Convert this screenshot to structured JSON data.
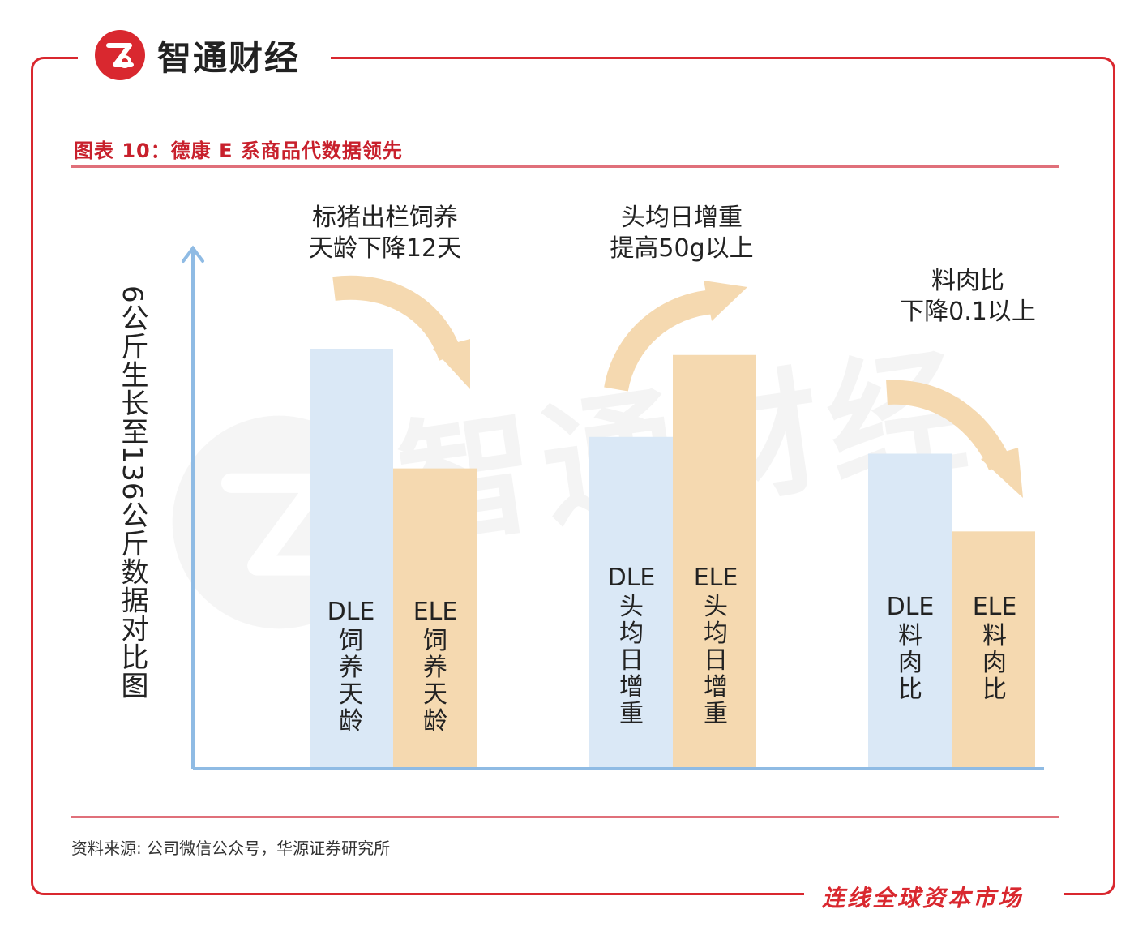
{
  "brand": {
    "name": "智通财经"
  },
  "figure": {
    "title": "图表 10：德康 E 系商品代数据领先",
    "source": "资料来源: 公司微信公众号，华源证券研究所",
    "slogan": "连线全球资本市场",
    "watermark": "智通财经"
  },
  "chart_data": {
    "type": "bar",
    "ylabel": "6公斤生长至136公斤数据对比图",
    "legend": "none",
    "grid": false,
    "categories": [
      "饲养天龄",
      "头均日增重",
      "料肉比"
    ],
    "series": [
      {
        "name": "DLE",
        "color": "#dae8f6",
        "values": [
          100,
          79,
          75
        ]
      },
      {
        "name": "ELE",
        "color": "#f5d9b0",
        "values": [
          71.5,
          98.5,
          56.5
        ]
      }
    ],
    "bar_labels": [
      [
        {
          "code": "DLE",
          "desc": "饲养天龄"
        },
        {
          "code": "ELE",
          "desc": "饲养天龄"
        }
      ],
      [
        {
          "code": "DLE",
          "desc": "头均日增重"
        },
        {
          "code": "ELE",
          "desc": "头均日增重"
        }
      ],
      [
        {
          "code": "DLE",
          "desc": "料肉比"
        },
        {
          "code": "ELE",
          "desc": "料肉比"
        }
      ]
    ],
    "annotations": [
      {
        "line1": "标猪出栏饲养",
        "line2": "天龄下降12天",
        "direction": "down"
      },
      {
        "line1": "头均日增重",
        "line2": "提高50g以上",
        "direction": "up"
      },
      {
        "line1": "料肉比",
        "line2": "下降0.1以上",
        "direction": "down"
      }
    ],
    "axis_color": "#8fbbe4",
    "arrow_color": "#f5d9b0"
  }
}
